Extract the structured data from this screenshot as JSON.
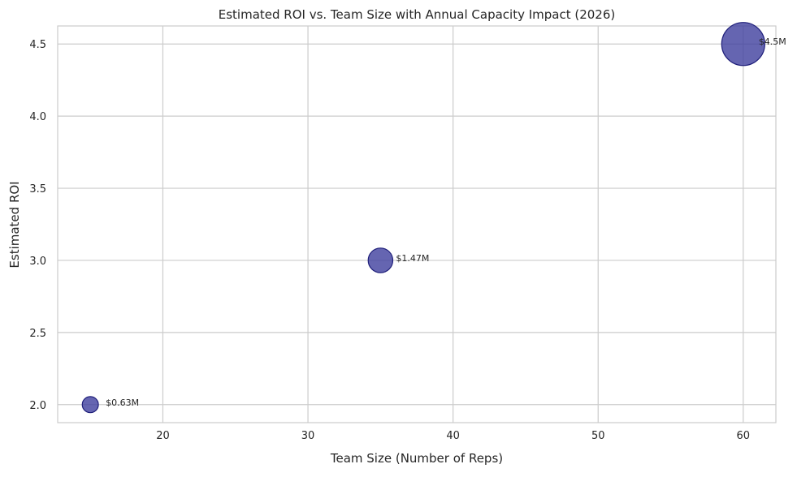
{
  "chart_data": {
    "type": "scatter",
    "title": "Estimated ROI vs. Team Size with Annual Capacity Impact (2026)",
    "xlabel": "Team Size (Number of Reps)",
    "ylabel": "Estimated ROI",
    "xlim": [
      12.75,
      62.25
    ],
    "ylim": [
      1.875,
      4.625
    ],
    "xticks": [
      20,
      30,
      40,
      50,
      60
    ],
    "yticks": [
      2.0,
      2.5,
      3.0,
      3.5,
      4.0,
      4.5
    ],
    "grid": true,
    "points": [
      {
        "x": 15,
        "y": 2.0,
        "size_value": 0.63,
        "label": "$0.63M"
      },
      {
        "x": 35,
        "y": 3.0,
        "size_value": 1.47,
        "label": "$1.47M"
      },
      {
        "x": 60,
        "y": 4.5,
        "size_value": 4.5,
        "label": "$4.5M"
      }
    ],
    "colors": {
      "marker_fill": "#3f3f9e",
      "marker_edge": "#1f1f7a",
      "grid": "#cccccc"
    }
  }
}
